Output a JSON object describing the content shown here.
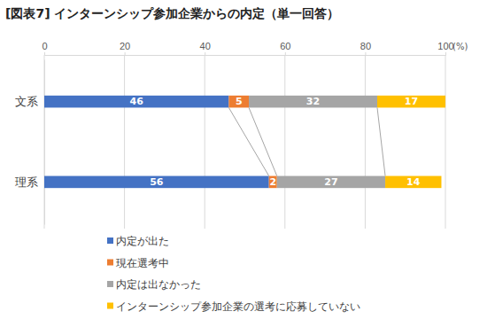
{
  "chart_data": {
    "type": "bar",
    "title": "[図表7] インターンシップ参加企業からの内定（単一回答）",
    "orientation": "horizontal",
    "stacked": true,
    "data_labels": true,
    "grid": true,
    "legend": "bottom",
    "xlabel": "(%)",
    "categories": [
      "文系",
      "理系"
    ],
    "series": [
      {
        "name": "内定が出た",
        "color": "#4472c4",
        "values": [
          46,
          56
        ]
      },
      {
        "name": "現在選考中",
        "color": "#ed7d31",
        "values": [
          5,
          2
        ]
      },
      {
        "name": "内定は出なかった",
        "color": "#a5a5a5",
        "values": [
          32,
          27
        ]
      },
      {
        "name": "インターンシップ参加企業の選考に応募していない",
        "color": "#ffc000",
        "values": [
          17,
          14
        ]
      }
    ],
    "xlim": [
      0,
      100
    ],
    "xticks": [
      0,
      20,
      40,
      60,
      80,
      100
    ]
  }
}
